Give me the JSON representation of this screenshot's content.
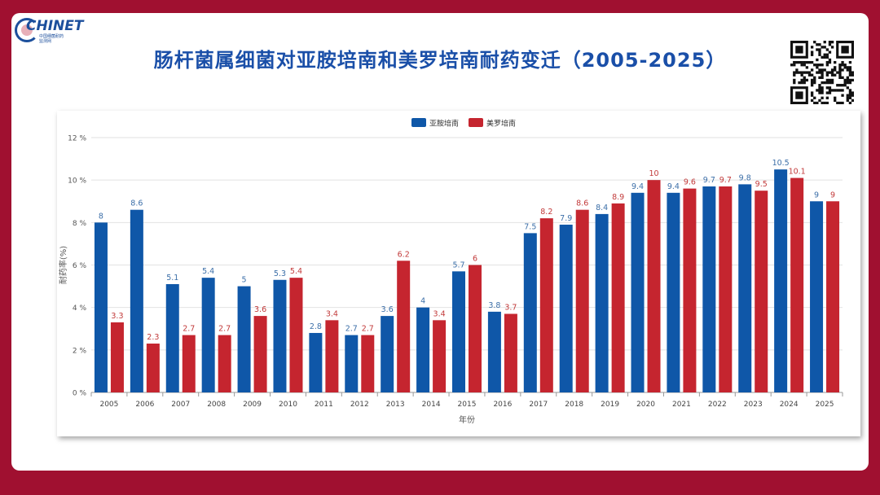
{
  "header": {
    "logo_text": "CHINET",
    "logo_sub_line1": "中国细菌耐药",
    "logo_sub_line2": "监测网",
    "title": "肠杆菌属细菌对亚胺培南和美罗培南耐药变迁（2005-2025）"
  },
  "colors": {
    "series1": "#0f57a8",
    "series2": "#c5252f",
    "label1": "#3c6fa8",
    "label2": "#c23a3a",
    "frame": "#a01030"
  },
  "chart_data": {
    "type": "bar",
    "ylabel": "耐药率(%)",
    "xlabel": "年份",
    "ylim": [
      0,
      12
    ],
    "yticks": [
      0,
      2,
      4,
      6,
      8,
      10,
      12
    ],
    "ytick_labels": [
      "0 %",
      "2 %",
      "4 %",
      "6 %",
      "8 %",
      "10 %",
      "12 %"
    ],
    "grid": true,
    "legend_position": "top",
    "categories": [
      "2005",
      "2006",
      "2007",
      "2008",
      "2009",
      "2010",
      "2011",
      "2012",
      "2013",
      "2014",
      "2015",
      "2016",
      "2017",
      "2018",
      "2019",
      "2020",
      "2021",
      "2022",
      "2023",
      "2024",
      "2025"
    ],
    "series": [
      {
        "name": "亚胺培南",
        "values": [
          8,
          8.6,
          5.1,
          5.4,
          5,
          5.3,
          2.8,
          2.7,
          3.6,
          4,
          5.7,
          3.8,
          7.5,
          7.9,
          8.4,
          9.4,
          9.4,
          9.7,
          9.8,
          10.5,
          9
        ]
      },
      {
        "name": "美罗培南",
        "values": [
          3.3,
          2.3,
          2.7,
          2.7,
          3.6,
          5.4,
          3.4,
          2.7,
          6.2,
          3.4,
          6,
          3.7,
          8.2,
          8.6,
          8.9,
          10,
          9.6,
          9.7,
          9.5,
          10.1,
          9
        ]
      }
    ]
  }
}
